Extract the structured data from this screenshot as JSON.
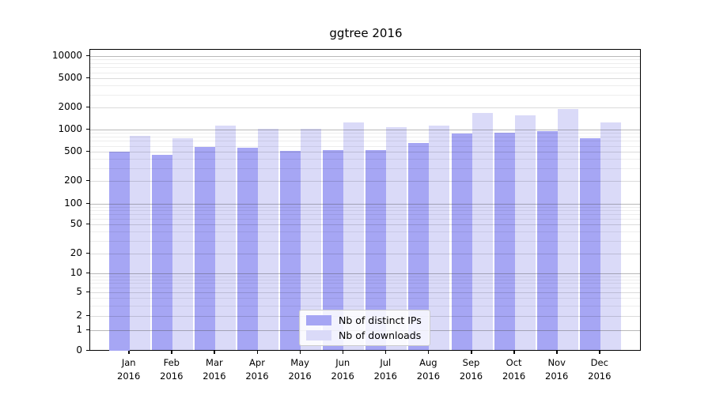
{
  "title": "ggtree 2016",
  "legend": {
    "items": [
      {
        "label": "Nb of distinct IPs",
        "color": "#a6a6f4"
      },
      {
        "label": "Nb of downloads",
        "color": "#dadaf8"
      }
    ]
  },
  "y_axis": {
    "tick_labels": [
      "10000",
      "5000",
      "2000",
      "1000",
      "500",
      "200",
      "100",
      "50",
      "20",
      "10",
      "5",
      "2",
      "1",
      "0"
    ]
  },
  "x_axis": {
    "months": [
      "Jan",
      "Feb",
      "Mar",
      "Apr",
      "May",
      "Jun",
      "Jul",
      "Aug",
      "Sep",
      "Oct",
      "Nov",
      "Dec"
    ],
    "year": "2016"
  },
  "chart_data": {
    "type": "bar",
    "yscale": "symlog",
    "title": "ggtree 2016",
    "categories": [
      "Jan 2016",
      "Feb 2016",
      "Mar 2016",
      "Apr 2016",
      "May 2016",
      "Jun 2016",
      "Jul 2016",
      "Aug 2016",
      "Sep 2016",
      "Oct 2016",
      "Nov 2016",
      "Dec 2016"
    ],
    "series": [
      {
        "name": "Nb of distinct IPs",
        "color": "#a6a6f4",
        "values": [
          500,
          450,
          580,
          565,
          515,
          530,
          530,
          650,
          880,
          900,
          950,
          760
        ]
      },
      {
        "name": "Nb of downloads",
        "color": "#dadaf8",
        "values": [
          820,
          770,
          1120,
          1020,
          1035,
          1250,
          1075,
          1120,
          1690,
          1580,
          1880,
          1265
        ]
      }
    ],
    "ylim": [
      0,
      11700
    ],
    "grid": true,
    "legend_position": "lower center",
    "colors": {
      "major_grid": "rgba(70,70,70,0.38)",
      "minor_grid_labeled": "rgba(0,0,0,0.14)",
      "minor_grid": "rgba(0,0,0,0.07)"
    }
  }
}
